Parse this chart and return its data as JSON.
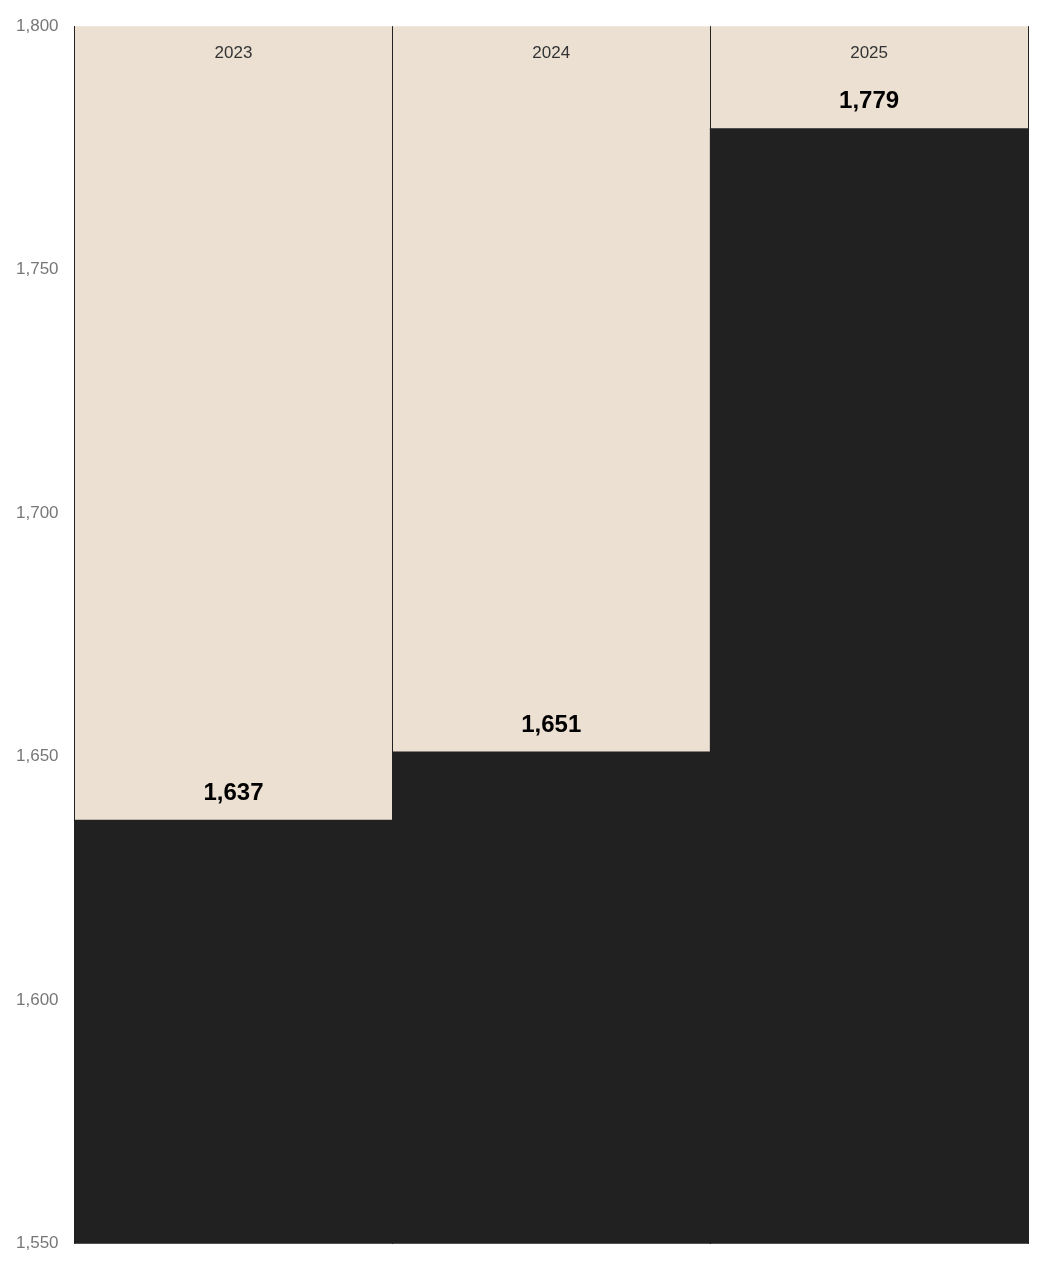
{
  "chart_data": {
    "type": "bar",
    "categories": [
      "2023",
      "2024",
      "2025"
    ],
    "values": [
      1637,
      1651,
      1779
    ],
    "color": "#212121",
    "ylim": [
      1550,
      1800
    ],
    "yticks": [
      {
        "value": 1550,
        "label": "1,550"
      },
      {
        "value": 1600,
        "label": "1,600"
      },
      {
        "value": 1650,
        "label": "1,650"
      },
      {
        "value": 1700,
        "label": "1,700"
      },
      {
        "value": 1750,
        "label": "1,750"
      },
      {
        "value": 1800,
        "label": "1,800"
      }
    ],
    "value_labels": [
      "1,637",
      "1,651",
      "1,779"
    ],
    "grid": "x",
    "legend": false
  }
}
